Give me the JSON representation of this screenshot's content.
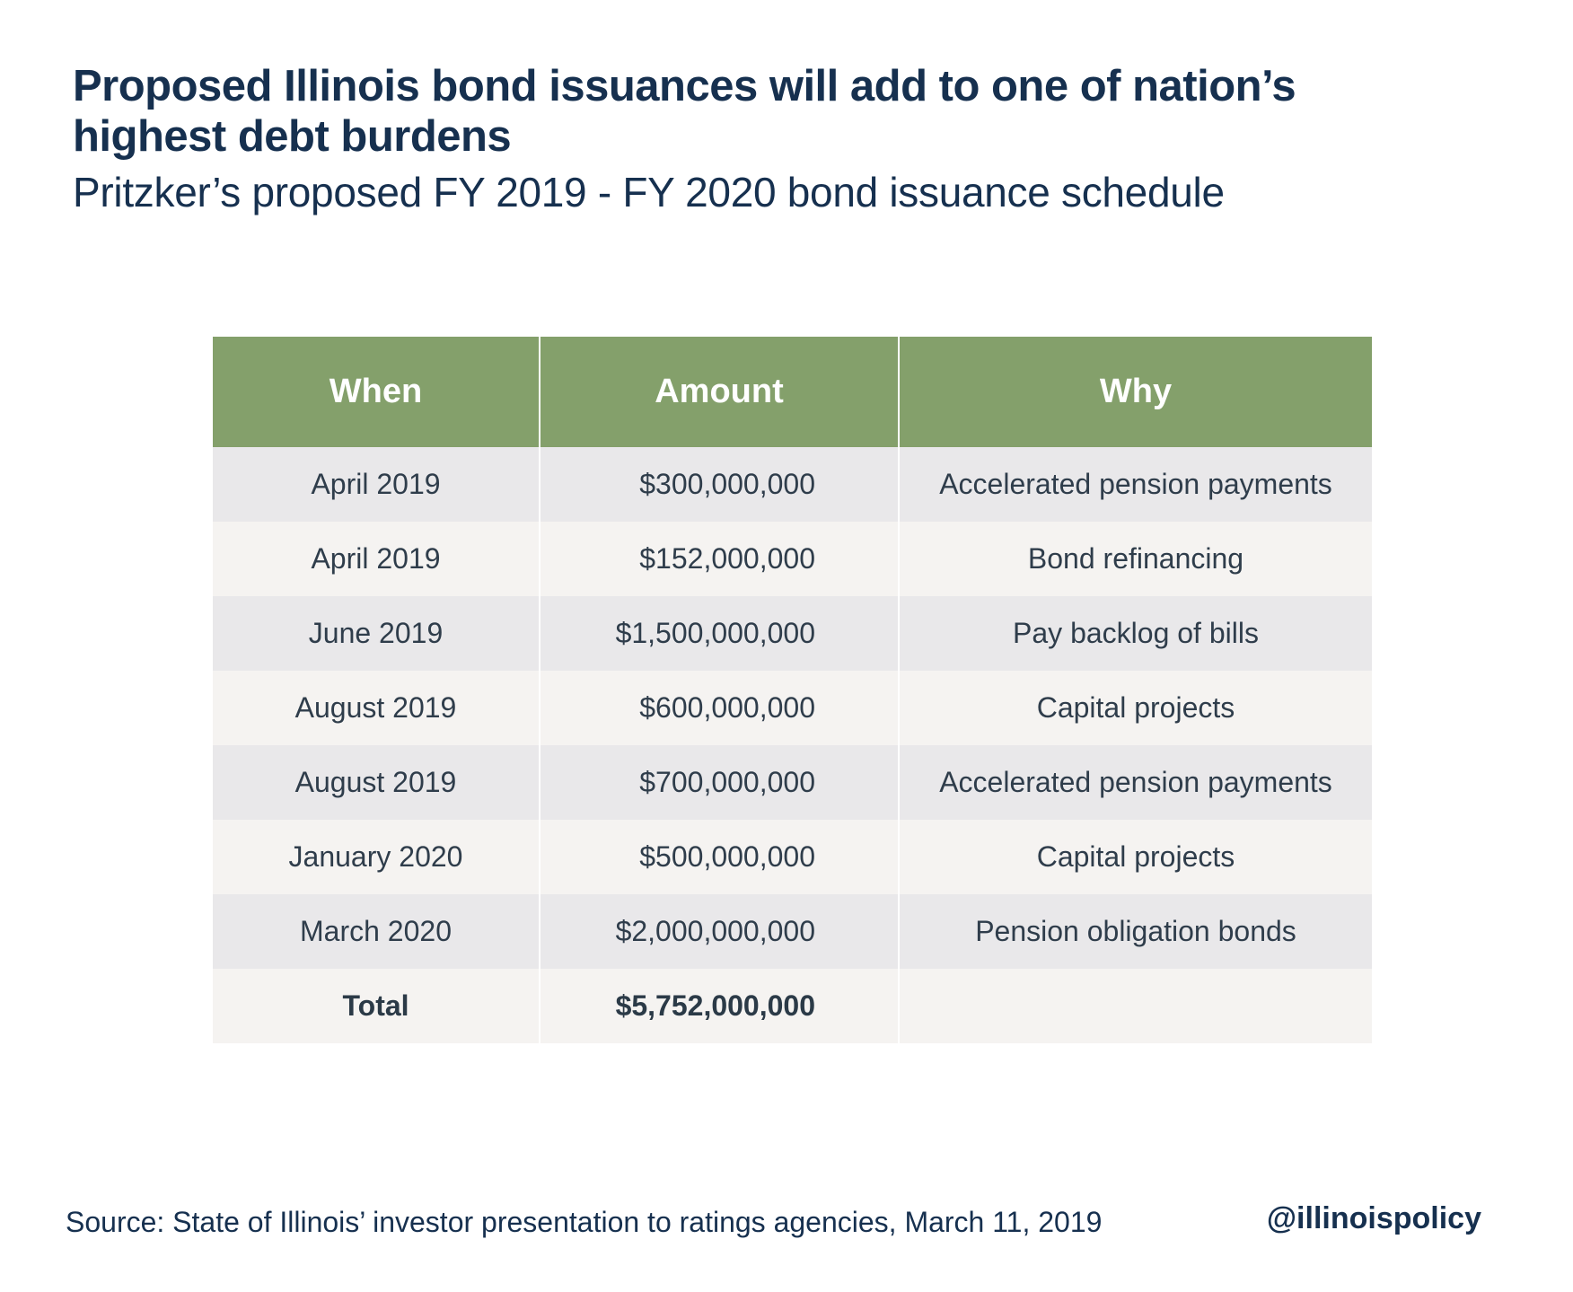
{
  "title": "Proposed Illinois bond issuances will add to one of nation’s highest debt burdens",
  "subtitle": "Pritzker’s proposed FY 2019 - FY 2020 bond issuance schedule",
  "chart_data": {
    "type": "table",
    "columns": [
      "When",
      "Amount",
      "Why"
    ],
    "rows": [
      {
        "when": "April 2019",
        "amount": "$300,000,000",
        "why": "Accelerated pension payments"
      },
      {
        "when": "April 2019",
        "amount": "$152,000,000",
        "why": "Bond refinancing"
      },
      {
        "when": "June 2019",
        "amount": "$1,500,000,000",
        "why": "Pay backlog of bills"
      },
      {
        "when": "August 2019",
        "amount": "$600,000,000",
        "why": "Capital projects"
      },
      {
        "when": "August 2019",
        "amount": "$700,000,000",
        "why": "Accelerated pension payments"
      },
      {
        "when": "January 2020",
        "amount": "$500,000,000",
        "why": "Capital projects"
      },
      {
        "when": "March 2020",
        "amount": "$2,000,000,000",
        "why": "Pension obligation bonds"
      }
    ],
    "total": {
      "label": "Total",
      "amount": "$5,752,000,000",
      "why": ""
    }
  },
  "footer": {
    "source": "Source: State of Illinois’ investor presentation to ratings agencies, March 11, 2019",
    "handle": "@illinoispolicy"
  },
  "colors": {
    "header_bg": "#84a06b",
    "row_odd": "#e9e8ea",
    "row_even": "#f5f3f1",
    "title_text": "#16304f"
  }
}
